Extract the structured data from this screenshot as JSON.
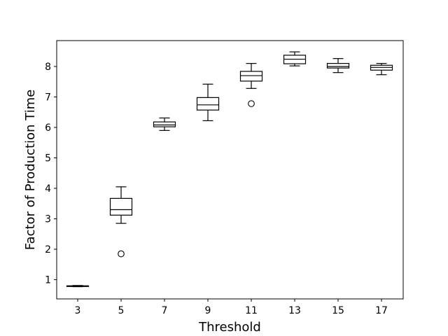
{
  "chart_data": {
    "type": "boxplot",
    "title": "",
    "xlabel": "Threshold",
    "ylabel": "Factor of Production Time",
    "categories": [
      "3",
      "5",
      "7",
      "9",
      "11",
      "13",
      "15",
      "17"
    ],
    "boxes": [
      {
        "category": "3",
        "whislo": 0.77,
        "q1": 0.78,
        "med": 0.79,
        "q3": 0.8,
        "whishi": 0.81,
        "fliers": []
      },
      {
        "category": "5",
        "whislo": 2.85,
        "q1": 3.12,
        "med": 3.3,
        "q3": 3.67,
        "whishi": 4.05,
        "fliers": [
          1.85
        ]
      },
      {
        "category": "7",
        "whislo": 5.9,
        "q1": 6.02,
        "med": 6.08,
        "q3": 6.18,
        "whishi": 6.31,
        "fliers": []
      },
      {
        "category": "9",
        "whislo": 6.22,
        "q1": 6.57,
        "med": 6.74,
        "q3": 6.98,
        "whishi": 7.42,
        "fliers": []
      },
      {
        "category": "11",
        "whislo": 7.28,
        "q1": 7.52,
        "med": 7.7,
        "q3": 7.84,
        "whishi": 8.1,
        "fliers": [
          6.78
        ]
      },
      {
        "category": "13",
        "whislo": 8.02,
        "q1": 8.09,
        "med": 8.24,
        "q3": 8.37,
        "whishi": 8.48,
        "fliers": []
      },
      {
        "category": "15",
        "whislo": 7.8,
        "q1": 7.95,
        "med": 8.0,
        "q3": 8.1,
        "whishi": 8.26,
        "fliers": []
      },
      {
        "category": "17",
        "whislo": 7.73,
        "q1": 7.88,
        "med": 7.97,
        "q3": 8.04,
        "whishi": 8.1,
        "fliers": []
      }
    ],
    "y_ticks": [
      1,
      2,
      3,
      4,
      5,
      6,
      7,
      8
    ],
    "ylim": [
      0.37,
      8.85
    ],
    "grid": false,
    "legend": "none",
    "colors": {
      "box": "#000000",
      "median": "#000000",
      "background": "#ffffff"
    }
  }
}
